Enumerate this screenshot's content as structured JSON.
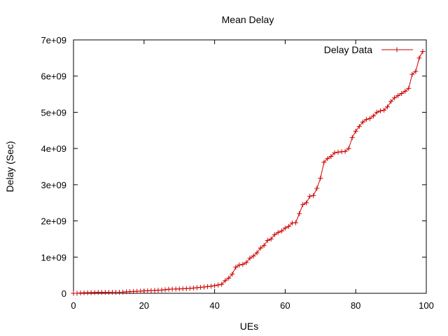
{
  "chart_data": {
    "type": "line",
    "title": "Mean Delay",
    "xlabel": "UEs",
    "ylabel": "Delay (Sec)",
    "xlim": [
      0,
      100
    ],
    "ylim": [
      0,
      7000000000
    ],
    "x_ticks": [
      0,
      20,
      40,
      60,
      80,
      100
    ],
    "x_tick_labels": [
      "0",
      "20",
      "40",
      "60",
      "80",
      "100"
    ],
    "y_ticks": [
      0,
      1000000000,
      2000000000,
      3000000000,
      4000000000,
      5000000000,
      6000000000,
      7000000000
    ],
    "y_tick_labels": [
      "0",
      "1e+09",
      "2e+09",
      "3e+09",
      "4e+09",
      "5e+09",
      "6e+09",
      "7e+09"
    ],
    "grid": false,
    "legend_position": "top-right",
    "series": [
      {
        "name": "Delay Data",
        "color": "#cc0000",
        "marker": "plus",
        "x": [
          0,
          1,
          2,
          3,
          4,
          5,
          6,
          7,
          8,
          9,
          10,
          11,
          12,
          13,
          14,
          15,
          16,
          17,
          18,
          19,
          20,
          21,
          22,
          23,
          24,
          25,
          26,
          27,
          28,
          29,
          30,
          31,
          32,
          33,
          34,
          35,
          36,
          37,
          38,
          39,
          40,
          41,
          42,
          43,
          44,
          45,
          46,
          47,
          48,
          49,
          50,
          51,
          52,
          53,
          54,
          55,
          56,
          57,
          58,
          59,
          60,
          61,
          62,
          63,
          64,
          65,
          66,
          67,
          68,
          69,
          70,
          71,
          72,
          73,
          74,
          75,
          76,
          77,
          78,
          79,
          80,
          81,
          82,
          83,
          84,
          85,
          86,
          87,
          88,
          89,
          90,
          91,
          92,
          93,
          94,
          95,
          96,
          97,
          98,
          99
        ],
        "values": [
          0,
          0,
          10000000,
          15000000,
          18000000,
          20000000,
          22000000,
          24000000,
          25000000,
          26000000,
          27000000,
          28000000,
          29000000,
          30000000,
          32000000,
          40000000,
          45000000,
          50000000,
          55000000,
          60000000,
          65000000,
          70000000,
          75000000,
          80000000,
          85000000,
          90000000,
          100000000,
          110000000,
          115000000,
          118000000,
          120000000,
          125000000,
          130000000,
          135000000,
          145000000,
          155000000,
          165000000,
          175000000,
          185000000,
          195000000,
          210000000,
          230000000,
          250000000,
          350000000,
          420000000,
          530000000,
          720000000,
          780000000,
          800000000,
          850000000,
          970000000,
          1030000000,
          1120000000,
          1250000000,
          1320000000,
          1460000000,
          1500000000,
          1620000000,
          1680000000,
          1720000000,
          1800000000,
          1850000000,
          1940000000,
          1950000000,
          2200000000,
          2450000000,
          2500000000,
          2680000000,
          2700000000,
          2900000000,
          3180000000,
          3620000000,
          3720000000,
          3780000000,
          3880000000,
          3900000000,
          3910000000,
          3920000000,
          4000000000,
          4300000000,
          4480000000,
          4610000000,
          4730000000,
          4800000000,
          4830000000,
          4900000000,
          5000000000,
          5040000000,
          5060000000,
          5150000000,
          5300000000,
          5400000000,
          5460000000,
          5520000000,
          5580000000,
          5660000000,
          6050000000,
          6130000000,
          6500000000,
          6680000000
        ]
      }
    ]
  }
}
